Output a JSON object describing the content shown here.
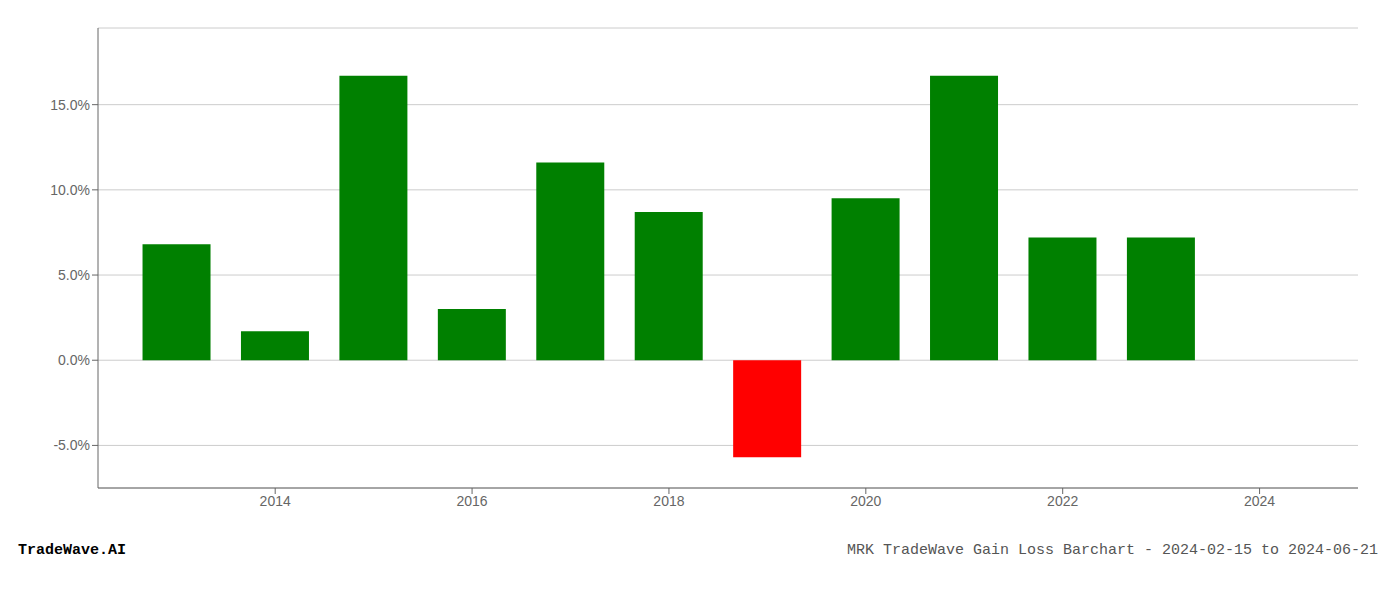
{
  "chart_data": {
    "type": "bar",
    "title": "MRK TradeWave Gain Loss Barchart - 2024-02-15 to 2024-06-21",
    "annotations": [
      "TradeWave.AI"
    ],
    "x": [
      2013,
      2014,
      2015,
      2016,
      2017,
      2018,
      2019,
      2020,
      2021,
      2022,
      2023
    ],
    "values": [
      0.068,
      0.017,
      0.167,
      0.03,
      0.116,
      0.087,
      -0.057,
      0.095,
      0.167,
      0.072,
      0.072
    ],
    "colors": [
      "#008000",
      "#008000",
      "#008000",
      "#008000",
      "#008000",
      "#008000",
      "#ff0000",
      "#008000",
      "#008000",
      "#008000",
      "#008000"
    ],
    "xlim": [
      2012.2,
      2025.0
    ],
    "xticks": [
      2014,
      2016,
      2018,
      2020,
      2022,
      2024
    ],
    "ylim": [
      -0.075,
      0.195
    ],
    "yticks": [
      {
        "value": -0.05,
        "label": "-5.0%"
      },
      {
        "value": 0.0,
        "label": "0.0%"
      },
      {
        "value": 0.05,
        "label": "5.0%"
      },
      {
        "value": 0.1,
        "label": "10.0%"
      },
      {
        "value": 0.15,
        "label": "15.0%"
      }
    ],
    "grid": true
  }
}
